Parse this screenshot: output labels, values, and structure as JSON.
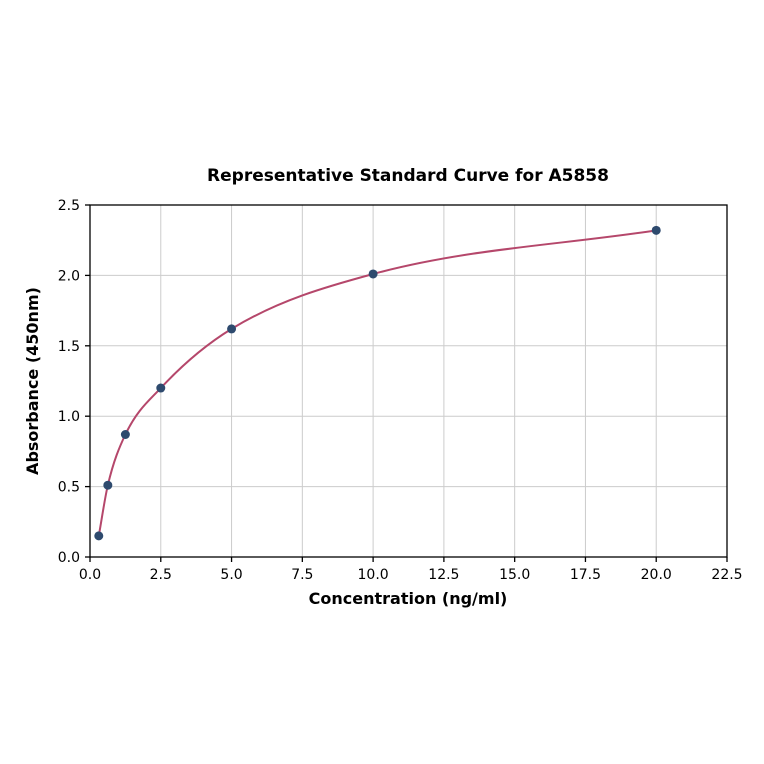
{
  "chart_data": {
    "type": "scatter",
    "title": "Representative Standard Curve for A5858",
    "xlabel": "Concentration (ng/ml)",
    "ylabel": "Absorbance (450nm)",
    "x": [
      0.31,
      0.63,
      1.25,
      2.5,
      5.0,
      10.0,
      20.0
    ],
    "y": [
      0.15,
      0.51,
      0.87,
      1.2,
      1.62,
      2.01,
      2.32
    ],
    "fit": "smooth saturation curve through points",
    "xlim": [
      0.0,
      22.5
    ],
    "ylim": [
      0.0,
      2.5
    ],
    "x_ticks": [
      0.0,
      2.5,
      5.0,
      7.5,
      10.0,
      12.5,
      15.0,
      17.5,
      20.0,
      22.5
    ],
    "y_ticks": [
      0.0,
      0.5,
      1.0,
      1.5,
      2.0,
      2.5
    ],
    "grid": true,
    "legend": "none",
    "colors": {
      "curve": "#b5476b",
      "points": "#2e4a6e",
      "grid": "#cccccc",
      "axis": "#000000",
      "background": "#ffffff"
    }
  }
}
